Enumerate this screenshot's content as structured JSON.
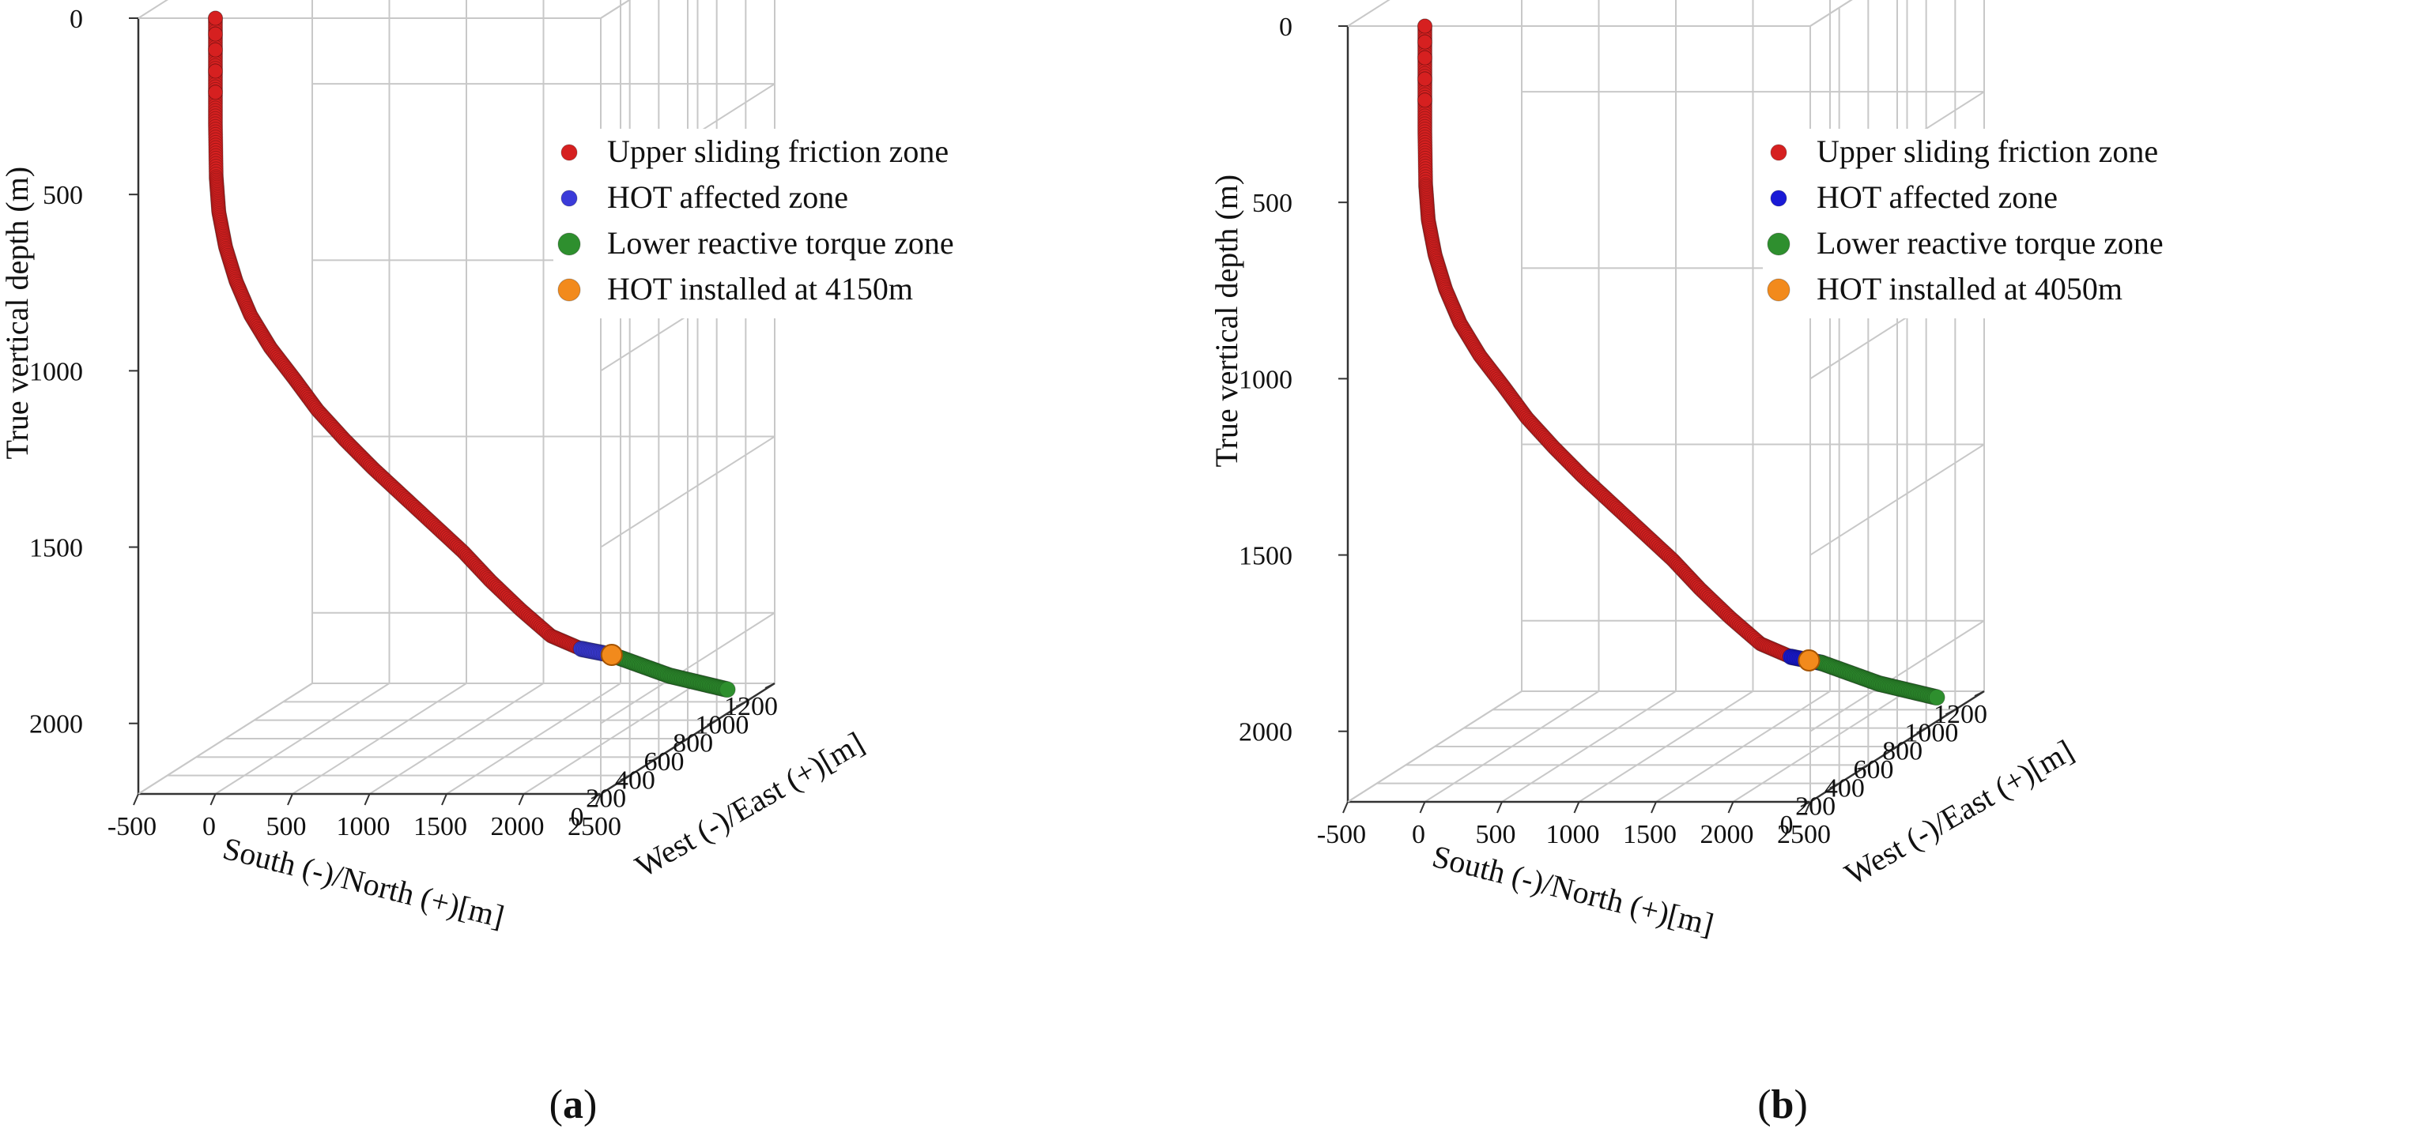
{
  "chart_data": [
    {
      "type": "scatter",
      "panel_label": "a",
      "xlabel": "South (-)/North (+)[m]",
      "ylabel": "West (-)/East (+)[m]",
      "zlabel": "True vertical depth (m)",
      "xlim": [
        -500,
        2500
      ],
      "ylim": [
        0,
        1200
      ],
      "zlim": [
        0,
        2200
      ],
      "x_ticks": [
        "-500",
        "0",
        "500",
        "1000",
        "1500",
        "2000",
        "2500"
      ],
      "y_ticks": [
        "0",
        "200",
        "400",
        "600",
        "800",
        "1000",
        "1200"
      ],
      "z_ticks": [
        "0",
        "500",
        "1000",
        "1500",
        "2000"
      ],
      "grid": true,
      "legend_position": "top-right",
      "trajectory": {
        "x": [
          0,
          0,
          0,
          5,
          20,
          60,
          120,
          200,
          300,
          420,
          520,
          640,
          760,
          880,
          1000,
          1120,
          1230,
          1360,
          1500,
          1650,
          1800,
          1950,
          2100,
          2250,
          2400
        ],
        "y": [
          0,
          0,
          0,
          0,
          2,
          6,
          15,
          30,
          60,
          100,
          150,
          210,
          280,
          360,
          440,
          520,
          590,
          660,
          720,
          770,
          820,
          860,
          900,
          940,
          980
        ],
        "z": [
          0,
          150,
          300,
          450,
          550,
          650,
          750,
          850,
          950,
          1050,
          1150,
          1250,
          1350,
          1450,
          1550,
          1650,
          1750,
          1850,
          1940,
          1990,
          2020,
          2060,
          2100,
          2130,
          2160
        ]
      },
      "series": [
        {
          "name": "Upper sliding friction zone",
          "color": "#d62020",
          "from": 0,
          "to": 19
        },
        {
          "name": "HOT affected zone",
          "color": "#3b3bd9",
          "from": 19,
          "to": 20
        },
        {
          "name": "Lower reactive torque zone",
          "color": "#2e8f2e",
          "from": 20,
          "to": 24
        },
        {
          "name": "HOT installed at 4150m",
          "color": "#f28a1c",
          "point": 20
        }
      ]
    },
    {
      "type": "scatter",
      "panel_label": "b",
      "xlabel": "South (-)/North (+)[m]",
      "ylabel": "West (-)/East (+)[m]",
      "zlabel": "True vertical depth (m)",
      "xlim": [
        -500,
        2500
      ],
      "ylim": [
        0,
        1200
      ],
      "zlim": [
        0,
        2200
      ],
      "x_ticks": [
        "-500",
        "0",
        "500",
        "1000",
        "1500",
        "2000",
        "2500"
      ],
      "y_ticks": [
        "0",
        "200",
        "400",
        "600",
        "800",
        "1000",
        "1200"
      ],
      "z_ticks": [
        "0",
        "500",
        "1000",
        "1500",
        "2000"
      ],
      "grid": true,
      "legend_position": "top-right",
      "trajectory": {
        "x": [
          0,
          0,
          0,
          5,
          20,
          60,
          120,
          200,
          300,
          420,
          520,
          640,
          760,
          880,
          1000,
          1120,
          1230,
          1360,
          1500,
          1650,
          1800,
          1950,
          2100,
          2250,
          2400
        ],
        "y": [
          0,
          0,
          0,
          0,
          2,
          6,
          15,
          30,
          60,
          100,
          150,
          210,
          280,
          360,
          440,
          520,
          590,
          660,
          720,
          770,
          820,
          860,
          900,
          940,
          980
        ],
        "z": [
          0,
          150,
          300,
          450,
          550,
          650,
          750,
          850,
          950,
          1050,
          1150,
          1250,
          1350,
          1450,
          1550,
          1650,
          1750,
          1850,
          1940,
          1990,
          2020,
          2060,
          2100,
          2130,
          2160
        ]
      },
      "series": [
        {
          "name": "Upper sliding friction zone",
          "color": "#d62020",
          "from": 0,
          "to": 19
        },
        {
          "name": "HOT affected zone",
          "color": "#1a1ad6",
          "from": 19,
          "to": 20
        },
        {
          "name": "Lower reactive torque zone",
          "color": "#2e8f2e",
          "from": 20,
          "to": 24
        },
        {
          "name": "HOT installed at 4050m",
          "color": "#f28a1c",
          "point": 19.6
        }
      ]
    }
  ]
}
